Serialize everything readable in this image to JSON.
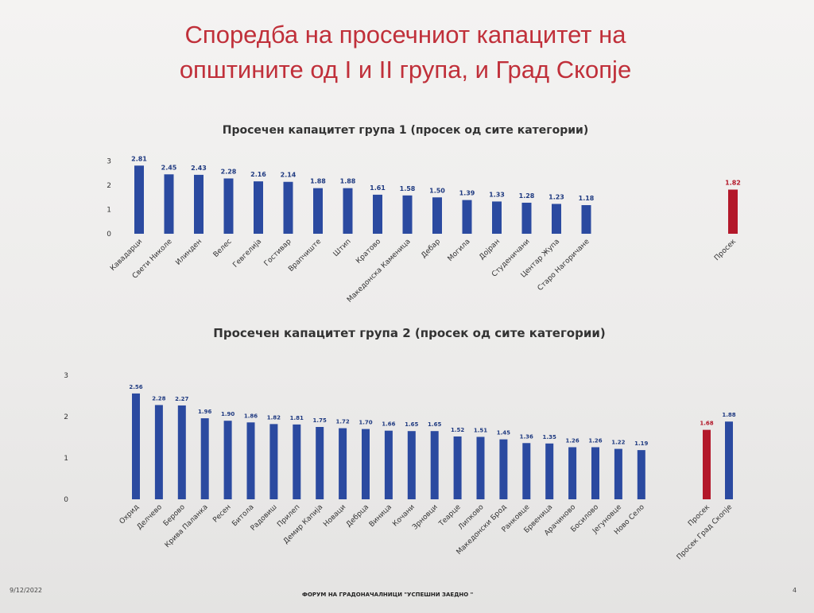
{
  "slide": {
    "title_line1": "Споредба на просечниот капацитет на",
    "title_line2": "општините од I  и II група, и Град Скопје",
    "date": "9/12/2022",
    "footer": "ФОРУМ НА ГРАДОНАЧАЛНИЦИ \"УСПЕШНИ ЗАЕДНО \"",
    "page_number": "4"
  },
  "colors": {
    "bar": "#2b4aa0",
    "average_bar": "#b3182a",
    "title": "#c0303a"
  },
  "chart_data": [
    {
      "type": "bar",
      "title": "Просечен капацитет група 1 (просек од сите категории)",
      "ylim": [
        0,
        3
      ],
      "yticks": [
        0,
        1,
        2,
        3
      ],
      "grid": false,
      "categories": [
        "Кавадарци",
        "Свети Николе",
        "Илинден",
        "Велес",
        "Гевгелија",
        "Гостивар",
        "Врапчиште",
        "Штип",
        "Кратово",
        "Македонска Каменица",
        "Дебар",
        "Могила",
        "Дојран",
        "Студеничани",
        "Центар Жупа",
        "Старо Нагоричане",
        "Просек"
      ],
      "values": [
        2.81,
        2.45,
        2.43,
        2.28,
        2.16,
        2.14,
        1.88,
        1.88,
        1.61,
        1.58,
        1.5,
        1.39,
        1.33,
        1.28,
        1.23,
        1.18,
        1.82
      ],
      "labels": [
        "2.81",
        "2.45",
        "2.43",
        "2.28",
        "2.16",
        "2.14",
        "1.88",
        "1.88",
        "1.61",
        "1.58",
        "1.50",
        "1.39",
        "1.33",
        "1.28",
        "1.23",
        "1.18",
        "1.82"
      ],
      "highlight": [
        "Просек"
      ]
    },
    {
      "type": "bar",
      "title": "Просечен капацитет група 2 (просек од сите категории)",
      "ylim": [
        0,
        3
      ],
      "yticks": [
        0,
        1,
        2,
        3
      ],
      "grid": false,
      "categories": [
        "Охрид",
        "Делчево",
        "Берово",
        "Крива Паланка",
        "Ресен",
        "Битола",
        "Радовиш",
        "Прилеп",
        "Демир Капија",
        "Новаци",
        "Дебрца",
        "Виница",
        "Кочани",
        "Зрновци",
        "Теарце",
        "Липково",
        "Македонски Брод",
        "Ранковце",
        "Брвеница",
        "Арачиново",
        "Босилово",
        "Јегуновце",
        "Ново Село",
        "Просек",
        "Просек Град Скопје"
      ],
      "values": [
        2.56,
        2.28,
        2.27,
        1.96,
        1.9,
        1.86,
        1.82,
        1.81,
        1.75,
        1.72,
        1.7,
        1.66,
        1.65,
        1.65,
        1.52,
        1.51,
        1.45,
        1.36,
        1.35,
        1.26,
        1.26,
        1.22,
        1.19,
        1.68,
        1.88
      ],
      "labels": [
        "2.56",
        "2.28",
        "2.27",
        "1.96",
        "1.90",
        "1.86",
        "1.82",
        "1.81",
        "1.75",
        "1.72",
        "1.70",
        "1.66",
        "1.65",
        "1.65",
        "1.52",
        "1.51",
        "1.45",
        "1.36",
        "1.35",
        "1.26",
        "1.26",
        "1.22",
        "1.19",
        "1.68",
        "1.88"
      ],
      "highlight": [
        "Просек"
      ]
    }
  ]
}
